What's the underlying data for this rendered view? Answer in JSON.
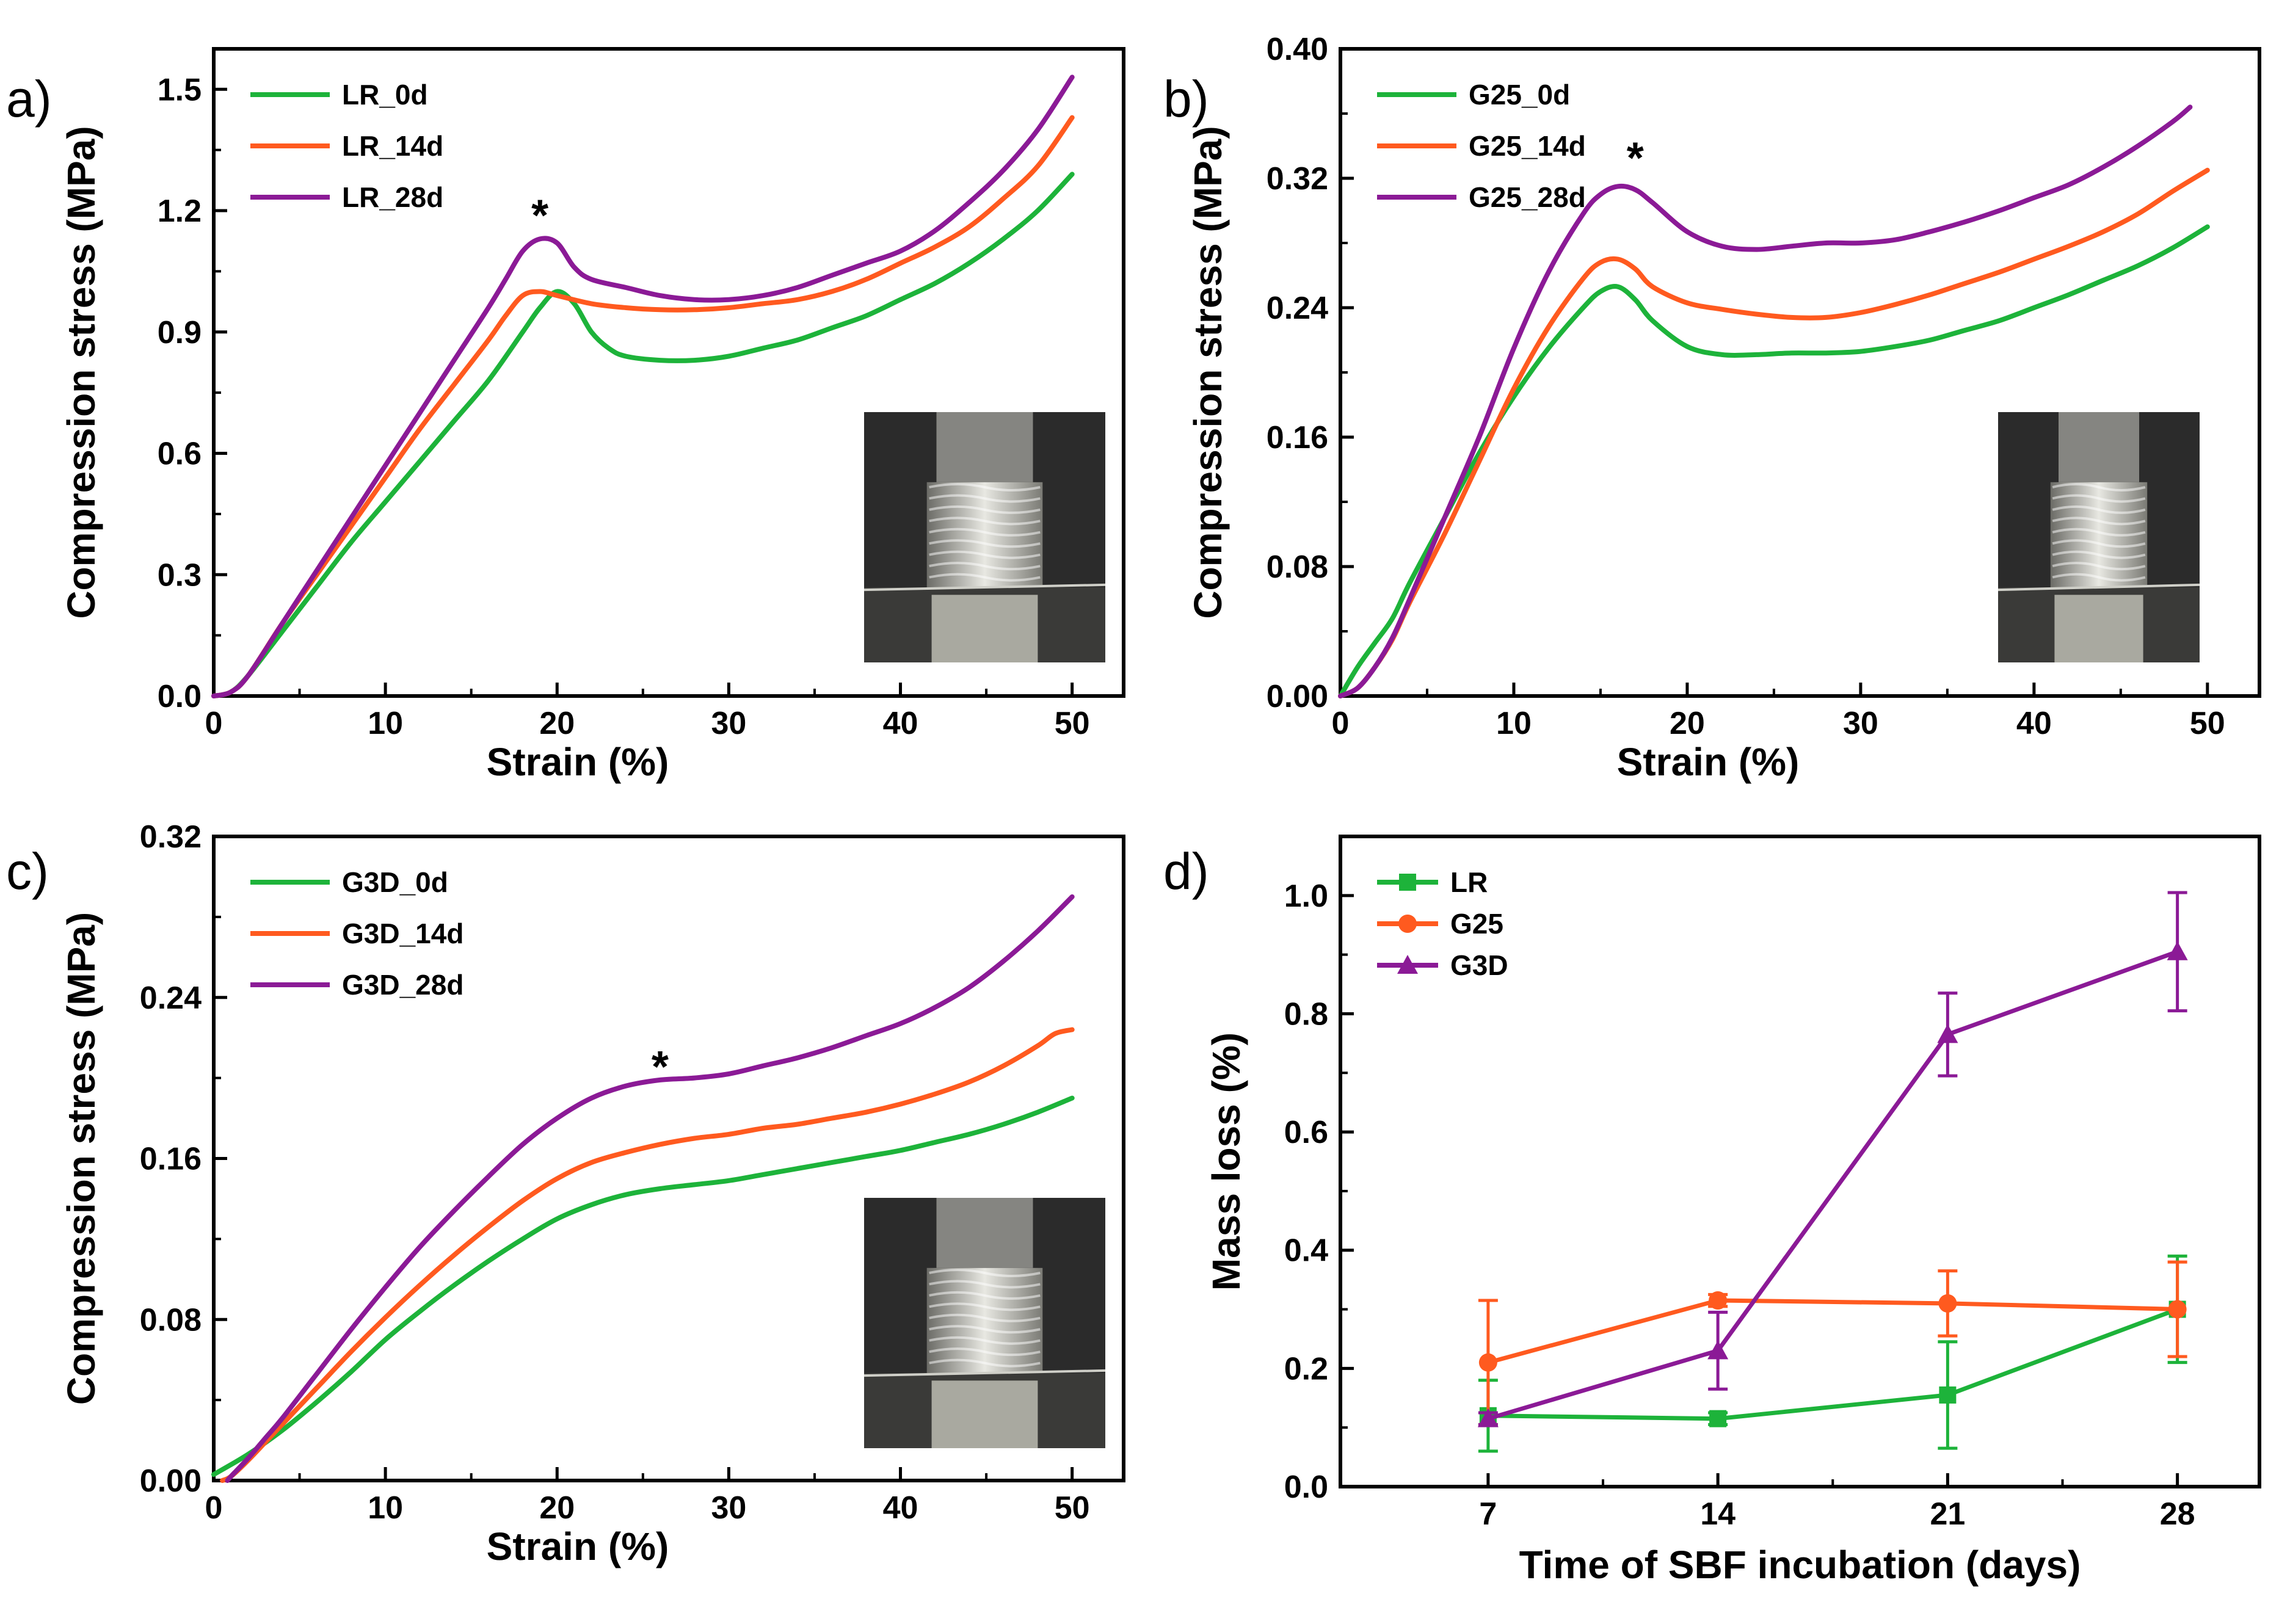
{
  "chart_data": [
    {
      "type": "line",
      "panel_label": "a)",
      "xlabel": "Strain (%)",
      "ylabel": "Compression stress (MPa)",
      "xlim": [
        0,
        53
      ],
      "ylim": [
        0,
        1.6
      ],
      "xticks": [
        "0",
        "10",
        "20",
        "30",
        "40",
        "50"
      ],
      "yticks": [
        "0.0",
        "0.3",
        "0.6",
        "0.9",
        "1.2",
        "1.5"
      ],
      "xtick_values": [
        0,
        10,
        20,
        30,
        40,
        50
      ],
      "ytick_values": [
        0,
        0.3,
        0.6,
        0.9,
        1.2,
        1.5
      ],
      "legend_position": "top-left",
      "annotation": "*",
      "annotation_at": [
        19,
        1.19
      ],
      "inset": "photo of printed LR scaffold under compression",
      "series": [
        {
          "name": "LR_0d",
          "color": "#1db33a",
          "x": [
            0,
            1,
            2,
            4,
            6,
            8,
            10,
            12,
            14,
            16,
            18,
            19,
            20,
            21,
            22,
            23,
            24,
            26,
            28,
            30,
            32,
            34,
            36,
            38,
            40,
            42,
            44,
            46,
            48,
            50
          ],
          "y": [
            0,
            0.01,
            0.05,
            0.16,
            0.27,
            0.38,
            0.48,
            0.58,
            0.68,
            0.78,
            0.9,
            0.96,
            1.0,
            0.97,
            0.9,
            0.86,
            0.84,
            0.83,
            0.83,
            0.84,
            0.86,
            0.88,
            0.91,
            0.94,
            0.98,
            1.02,
            1.07,
            1.13,
            1.2,
            1.29
          ]
        },
        {
          "name": "LR_14d",
          "color": "#ff5a1f",
          "x": [
            0,
            1,
            2,
            4,
            6,
            8,
            10,
            12,
            14,
            16,
            17,
            18,
            19,
            20,
            22,
            24,
            26,
            28,
            30,
            32,
            34,
            36,
            38,
            40,
            42,
            44,
            46,
            48,
            50
          ],
          "y": [
            0,
            0.01,
            0.05,
            0.18,
            0.3,
            0.42,
            0.54,
            0.66,
            0.77,
            0.88,
            0.94,
            0.99,
            1.0,
            0.99,
            0.97,
            0.96,
            0.955,
            0.955,
            0.96,
            0.97,
            0.98,
            1.0,
            1.03,
            1.07,
            1.11,
            1.16,
            1.23,
            1.31,
            1.43
          ]
        },
        {
          "name": "LR_28d",
          "color": "#8b1a96",
          "x": [
            0,
            1,
            2,
            4,
            6,
            8,
            10,
            12,
            14,
            16,
            17,
            18,
            19,
            20,
            21,
            22,
            24,
            26,
            28,
            30,
            32,
            34,
            36,
            38,
            40,
            42,
            44,
            46,
            48,
            50
          ],
          "y": [
            0,
            0.01,
            0.05,
            0.18,
            0.31,
            0.44,
            0.57,
            0.7,
            0.83,
            0.96,
            1.03,
            1.1,
            1.13,
            1.12,
            1.06,
            1.03,
            1.01,
            0.99,
            0.98,
            0.98,
            0.99,
            1.01,
            1.04,
            1.07,
            1.1,
            1.15,
            1.22,
            1.3,
            1.4,
            1.53
          ]
        }
      ]
    },
    {
      "type": "line",
      "panel_label": "b)",
      "xlabel": "Strain (%)",
      "ylabel": "Compression stress (MPa)",
      "xlim": [
        0,
        53
      ],
      "ylim": [
        0,
        0.4
      ],
      "xticks": [
        "0",
        "10",
        "20",
        "30",
        "40",
        "50"
      ],
      "yticks": [
        "0.00",
        "0.08",
        "0.16",
        "0.24",
        "0.32",
        "0.40"
      ],
      "xtick_values": [
        0,
        10,
        20,
        30,
        40,
        50
      ],
      "ytick_values": [
        0,
        0.08,
        0.16,
        0.24,
        0.32,
        0.4
      ],
      "legend_position": "top-left",
      "annotation": "*",
      "annotation_at": [
        17,
        0.333
      ],
      "inset": "photo of printed G25 scaffold under compression",
      "series": [
        {
          "name": "G25_0d",
          "color": "#1db33a",
          "x": [
            0,
            1,
            2,
            3,
            4,
            6,
            8,
            10,
            12,
            14,
            15,
            16,
            17,
            18,
            20,
            22,
            24,
            26,
            28,
            30,
            32,
            34,
            36,
            38,
            40,
            42,
            44,
            46,
            48,
            50
          ],
          "y": [
            0,
            0.018,
            0.033,
            0.048,
            0.07,
            0.11,
            0.15,
            0.185,
            0.215,
            0.24,
            0.25,
            0.253,
            0.245,
            0.232,
            0.216,
            0.211,
            0.211,
            0.212,
            0.212,
            0.213,
            0.216,
            0.22,
            0.226,
            0.232,
            0.24,
            0.248,
            0.257,
            0.266,
            0.277,
            0.29
          ]
        },
        {
          "name": "G25_14d",
          "color": "#ff5a1f",
          "x": [
            0,
            1,
            2,
            3,
            4,
            6,
            8,
            10,
            12,
            14,
            15,
            16,
            17,
            18,
            20,
            22,
            24,
            26,
            28,
            30,
            32,
            34,
            36,
            38,
            40,
            42,
            44,
            46,
            48,
            50
          ],
          "y": [
            0,
            0.005,
            0.018,
            0.035,
            0.058,
            0.1,
            0.145,
            0.19,
            0.228,
            0.258,
            0.268,
            0.27,
            0.264,
            0.253,
            0.243,
            0.239,
            0.236,
            0.234,
            0.234,
            0.237,
            0.242,
            0.248,
            0.255,
            0.262,
            0.27,
            0.278,
            0.287,
            0.298,
            0.312,
            0.325
          ]
        },
        {
          "name": "G25_28d",
          "color": "#8b1a96",
          "x": [
            0,
            1,
            2,
            3,
            4,
            6,
            8,
            10,
            12,
            14,
            15,
            16,
            17,
            18,
            20,
            22,
            24,
            26,
            28,
            30,
            32,
            34,
            36,
            38,
            40,
            42,
            44,
            46,
            48,
            49
          ],
          "y": [
            0,
            0.005,
            0.018,
            0.036,
            0.06,
            0.11,
            0.16,
            0.215,
            0.262,
            0.298,
            0.31,
            0.315,
            0.313,
            0.305,
            0.287,
            0.278,
            0.276,
            0.278,
            0.28,
            0.28,
            0.282,
            0.287,
            0.293,
            0.3,
            0.308,
            0.316,
            0.327,
            0.34,
            0.355,
            0.364
          ]
        }
      ]
    },
    {
      "type": "line",
      "panel_label": "c)",
      "xlabel": "Strain (%)",
      "ylabel": "Compression stress (MPa)",
      "xlim": [
        0,
        53
      ],
      "ylim": [
        0,
        0.32
      ],
      "xticks": [
        "0",
        "10",
        "20",
        "30",
        "40",
        "50"
      ],
      "yticks": [
        "0.00",
        "0.08",
        "0.16",
        "0.24",
        "0.32"
      ],
      "xtick_values": [
        0,
        10,
        20,
        30,
        40,
        50
      ],
      "ytick_values": [
        0,
        0.08,
        0.16,
        0.24,
        0.32
      ],
      "legend_position": "top-left",
      "annotation": "*",
      "annotation_at": [
        26,
        0.206
      ],
      "inset": "photo of printed G3D scaffold under compression",
      "series": [
        {
          "name": "G3D_0d",
          "color": "#1db33a",
          "x": [
            0,
            2,
            4,
            6,
            8,
            10,
            12,
            14,
            16,
            18,
            20,
            22,
            24,
            26,
            28,
            30,
            32,
            34,
            36,
            38,
            40,
            42,
            44,
            46,
            48,
            50
          ],
          "y": [
            0.003,
            0.013,
            0.025,
            0.039,
            0.054,
            0.07,
            0.084,
            0.097,
            0.109,
            0.12,
            0.13,
            0.137,
            0.142,
            0.145,
            0.147,
            0.149,
            0.152,
            0.155,
            0.158,
            0.161,
            0.164,
            0.168,
            0.172,
            0.177,
            0.183,
            0.19
          ]
        },
        {
          "name": "G3D_14d",
          "color": "#ff5a1f",
          "x": [
            0.5,
            1,
            2,
            3,
            4,
            6,
            8,
            10,
            12,
            14,
            16,
            18,
            20,
            22,
            24,
            26,
            28,
            30,
            32,
            34,
            36,
            38,
            40,
            42,
            44,
            46,
            48,
            49,
            50
          ],
          "y": [
            0,
            0.002,
            0.01,
            0.019,
            0.028,
            0.046,
            0.064,
            0.081,
            0.097,
            0.112,
            0.126,
            0.139,
            0.15,
            0.158,
            0.163,
            0.167,
            0.17,
            0.172,
            0.175,
            0.177,
            0.18,
            0.183,
            0.187,
            0.192,
            0.198,
            0.206,
            0.216,
            0.222,
            0.224
          ]
        },
        {
          "name": "G3D_28d",
          "color": "#8b1a96",
          "x": [
            0.8,
            1,
            2,
            3,
            4,
            6,
            8,
            10,
            12,
            14,
            16,
            18,
            20,
            22,
            24,
            26,
            28,
            30,
            32,
            34,
            36,
            38,
            40,
            42,
            44,
            46,
            48,
            50
          ],
          "y": [
            0,
            0.002,
            0.011,
            0.021,
            0.031,
            0.053,
            0.075,
            0.096,
            0.116,
            0.134,
            0.151,
            0.167,
            0.18,
            0.19,
            0.196,
            0.199,
            0.2,
            0.202,
            0.206,
            0.21,
            0.215,
            0.221,
            0.227,
            0.235,
            0.245,
            0.258,
            0.273,
            0.29
          ]
        }
      ]
    },
    {
      "type": "line",
      "panel_label": "d)",
      "xlabel": "Time of SBF incubation (days)",
      "ylabel": "Mass loss (%)",
      "xlim": [
        2.5,
        30.5
      ],
      "ylim": [
        0,
        1.1
      ],
      "xticks": [
        "7",
        "14",
        "21",
        "28"
      ],
      "yticks": [
        "0.0",
        "0.2",
        "0.4",
        "0.6",
        "0.8",
        "1.0"
      ],
      "xtick_values": [
        7,
        14,
        21,
        28
      ],
      "ytick_values": [
        0,
        0.2,
        0.4,
        0.6,
        0.8,
        1.0
      ],
      "legend_position": "top-left",
      "series": [
        {
          "name": "LR",
          "color": "#1db33a",
          "marker": "square",
          "x": [
            7,
            14,
            21,
            28
          ],
          "y": [
            0.12,
            0.115,
            0.155,
            0.3
          ],
          "err": [
            0.06,
            0.01,
            0.09,
            0.09
          ]
        },
        {
          "name": "G25",
          "color": "#ff5a1f",
          "marker": "circle",
          "x": [
            7,
            14,
            21,
            28
          ],
          "y": [
            0.21,
            0.315,
            0.31,
            0.3
          ],
          "err": [
            0.105,
            0.01,
            0.055,
            0.08
          ]
        },
        {
          "name": "G3D",
          "color": "#8b1a96",
          "marker": "triangle",
          "x": [
            7,
            14,
            21,
            28
          ],
          "y": [
            0.115,
            0.23,
            0.765,
            0.905
          ],
          "err": [
            0.01,
            0.065,
            0.07,
            0.1
          ]
        }
      ]
    }
  ]
}
